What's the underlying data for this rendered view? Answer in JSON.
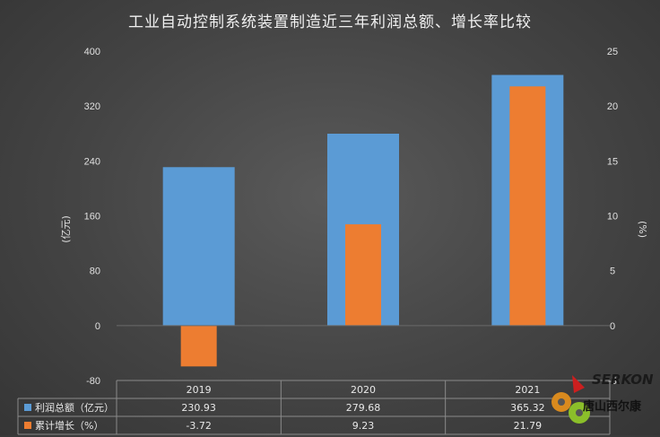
{
  "chart_data": {
    "type": "bar",
    "title": "工业自动控制系统装置制造近三年利润总额、增长率比较",
    "categories": [
      "2019",
      "2020",
      "2021"
    ],
    "series": [
      {
        "name": "利润总额（亿元）",
        "axis": "left",
        "color": "#5b9bd5",
        "values": [
          230.93,
          279.68,
          365.32
        ],
        "labels": [
          "230.93",
          "279.68",
          "365.32"
        ]
      },
      {
        "name": "累计增长（%）",
        "axis": "right",
        "color": "#ed7d31",
        "values": [
          -3.72,
          9.23,
          21.79
        ],
        "labels": [
          "-3.72",
          "9.23",
          "21.79"
        ]
      }
    ],
    "y_left": {
      "label": "(亿元)",
      "min": -80,
      "max": 400,
      "ticks": [
        "-80",
        "0",
        "80",
        "160",
        "240",
        "320",
        "400"
      ]
    },
    "y_right": {
      "label": "(%)",
      "min": -5,
      "max": 25,
      "ticks": [
        "-5",
        "0",
        "5",
        "10",
        "15",
        "20",
        "25"
      ]
    },
    "grid": false,
    "legend": "data-table"
  },
  "watermark": {
    "brand": "SERKON",
    "name": "唐山西尔康"
  }
}
